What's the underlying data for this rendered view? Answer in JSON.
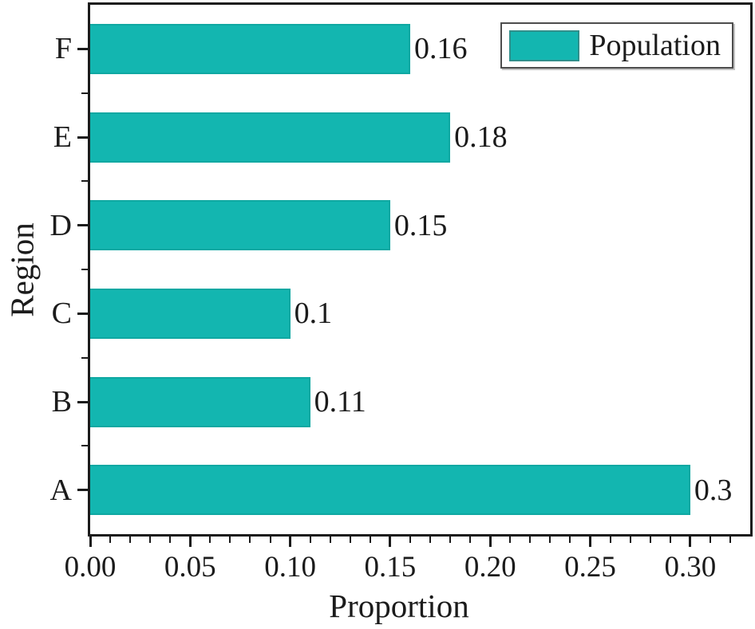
{
  "chart_data": {
    "type": "bar",
    "orientation": "horizontal",
    "title": "",
    "xlabel": "Proportion",
    "ylabel": "Region",
    "categories": [
      "A",
      "B",
      "C",
      "D",
      "E",
      "F"
    ],
    "values": [
      0.3,
      0.11,
      0.1,
      0.15,
      0.18,
      0.16
    ],
    "bar_labels": [
      "0.3",
      "0.11",
      "0.1",
      "0.15",
      "0.18",
      "0.16"
    ],
    "category_order_note": "A at bottom, F at top",
    "series": [
      {
        "name": "Population",
        "values": [
          0.3,
          0.11,
          0.1,
          0.15,
          0.18,
          0.16
        ]
      }
    ],
    "legend": {
      "label": "Population",
      "position": "top-right",
      "frame": true
    },
    "xlim": [
      0,
      0.33
    ],
    "x_major_ticks": [
      {
        "v": 0.0,
        "label": "0.00"
      },
      {
        "v": 0.05,
        "label": "0.05"
      },
      {
        "v": 0.1,
        "label": "0.10"
      },
      {
        "v": 0.15,
        "label": "0.15"
      },
      {
        "v": 0.2,
        "label": "0.20"
      },
      {
        "v": 0.25,
        "label": "0.25"
      },
      {
        "v": 0.3,
        "label": "0.30"
      }
    ],
    "x_minor_step": 0.01,
    "grid": "off",
    "colors": {
      "bar_fill": "#13b6b0",
      "bar_edge": "#0fa8a2",
      "axis": "#1b1b1b",
      "text": "#1b1b1b"
    }
  }
}
